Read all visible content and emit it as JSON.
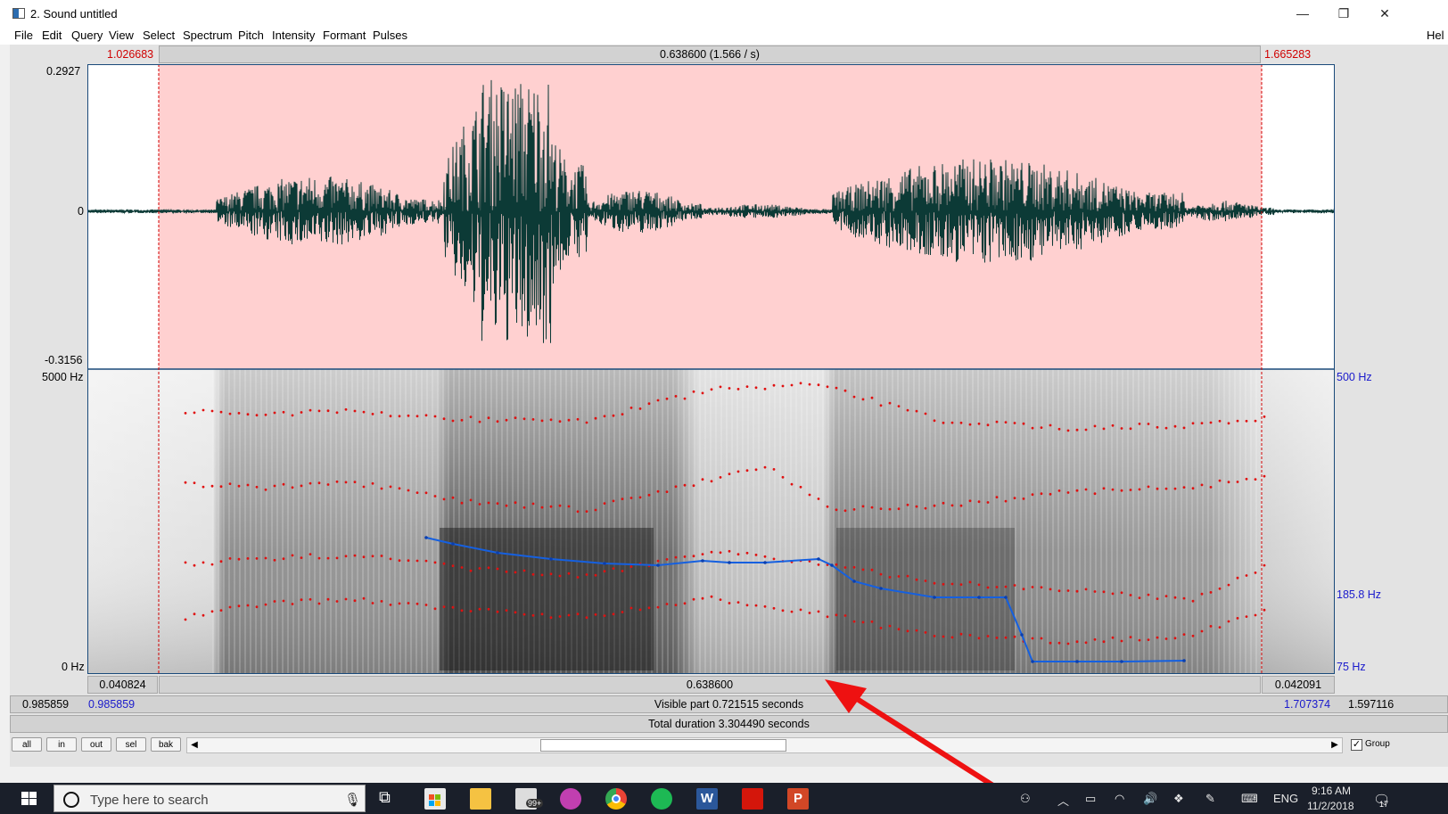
{
  "window": {
    "title": "2. Sound untitled",
    "min_glyph": "—",
    "max_glyph": "❐",
    "close_glyph": "✕"
  },
  "menu": [
    "File",
    "Edit",
    "Query",
    "View",
    "Select",
    "Spectrum",
    "Pitch",
    "Intensity",
    "Formant",
    "Pulses"
  ],
  "menu_help_partial": "Hel",
  "selection": {
    "start": "1.026683",
    "end": "1.665283",
    "duration_label": "0.638600 (1.566 / s)"
  },
  "waveform": {
    "y_max": "0.2927",
    "y_zero": "0",
    "y_min": "-0.3156"
  },
  "spectrogram": {
    "freq_top_left": "5000 Hz",
    "freq_bottom_left": "0 Hz",
    "pitch_top_right": "500 Hz",
    "pitch_mid_right": "185.8 Hz",
    "pitch_bottom_right": "75 Hz"
  },
  "bottom": {
    "left_segment": "0.040824",
    "mid_segment": "0.638600",
    "right_segment": "0.042091",
    "visible_start_outer": "0.985859",
    "visible_start_inner": "0.985859",
    "visible_part": "Visible part 0.721515 seconds",
    "visible_end_inner": "1.707374",
    "visible_end_outer": "1.597116",
    "total_duration": "Total duration 3.304490 seconds"
  },
  "buttons": {
    "all": "all",
    "in": "in",
    "out": "out",
    "sel": "sel",
    "bak": "bak",
    "group": "Group",
    "group_checked": true
  },
  "taskbar": {
    "search_placeholder": "Type here to search",
    "mail_badge": "99+",
    "lang": "ENG",
    "time": "9:16 AM",
    "date": "11/2/2018",
    "notif_badge": "17"
  },
  "colors": {
    "selection_bg": "#ffd0d0",
    "waveform": "#0c3a36",
    "pitch_line": "#1560e0",
    "formant_dots": "#e01010",
    "annotation_arrow": "#ee1111"
  }
}
